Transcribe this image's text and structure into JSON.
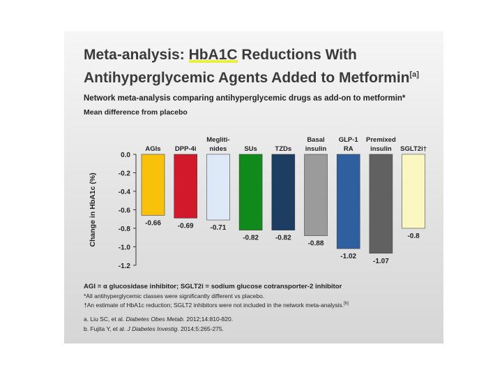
{
  "title": {
    "line1_prefix": "Meta-analysis: ",
    "line1_highlight": "HbA1C",
    "line1_suffix": " Reductions With",
    "line2": "Antihyperglycemic Agents Added to Metformin",
    "line2_sup": "[a]"
  },
  "subtitle": "Network meta-analysis comparing antihyperglycemic drugs as add-on to metformin*",
  "subtitle2": "Mean difference from placebo",
  "chart_data": {
    "type": "bar",
    "categories": [
      "AGIs",
      "DPP-4i",
      "Megliti-nides",
      "SUs",
      "TZDs",
      "Basal insulin",
      "GLP-1 RA",
      "Premixed insulin",
      "SGLT2i†"
    ],
    "category_lines": [
      [
        "AGIs"
      ],
      [
        "DPP-4i"
      ],
      [
        "Megliti-",
        "nides"
      ],
      [
        "SUs"
      ],
      [
        "TZDs"
      ],
      [
        "Basal",
        "insulin"
      ],
      [
        "GLP-1",
        "RA"
      ],
      [
        "Premixed",
        "insulin"
      ],
      [
        "SGLT2i†"
      ]
    ],
    "values": [
      -0.66,
      -0.69,
      -0.71,
      -0.82,
      -0.82,
      -0.88,
      -1.02,
      -1.07,
      -0.8
    ],
    "value_labels": [
      "-0.66",
      "-0.69",
      "-0.71",
      "-0.82",
      "-0.82",
      "-0.88",
      "-1.02",
      "-1.07",
      "-0.8"
    ],
    "colors": [
      "#f9c20a",
      "#d2182b",
      "#dde9f6",
      "#118a1c",
      "#1d3d63",
      "#9b9b9b",
      "#2e5f9f",
      "#616161",
      "#fbf7c1"
    ],
    "ylabel": "Change in HbA1c (%)",
    "xlabel": "",
    "ylim": [
      -1.2,
      0
    ],
    "yticks": [
      0,
      -0.2,
      -0.4,
      -0.6,
      -0.8,
      -1.0,
      -1.2
    ],
    "ytick_labels": [
      "0.0",
      "-0.2",
      "-0.4",
      "-0.6",
      "-0.8",
      "-1.0",
      "-1.2"
    ],
    "grid": false,
    "legend": "none"
  },
  "footer": {
    "abbrev": "AGI = α glucosidase inhibitor; SGLT2i = sodium glucose cotransporter-2 inhibitor",
    "note1": "*All antihyperglycemic classes were significantly different vs placebo.",
    "note2": "†An estimate of HbA1c reduction; SGLT2 inhibitors were not included in the network meta-analysis.",
    "note2_sup": "[b]",
    "ref_a_pre": "a. Liu SC, et al. ",
    "ref_a_journal": "Diabetes Obes Metab.",
    "ref_a_post": " 2012;14:810-820.",
    "ref_b_pre": "b. Fujita Y, et al. ",
    "ref_b_journal": "J Diabetes Investig.",
    "ref_b_post": " 2014;5:265-275."
  }
}
